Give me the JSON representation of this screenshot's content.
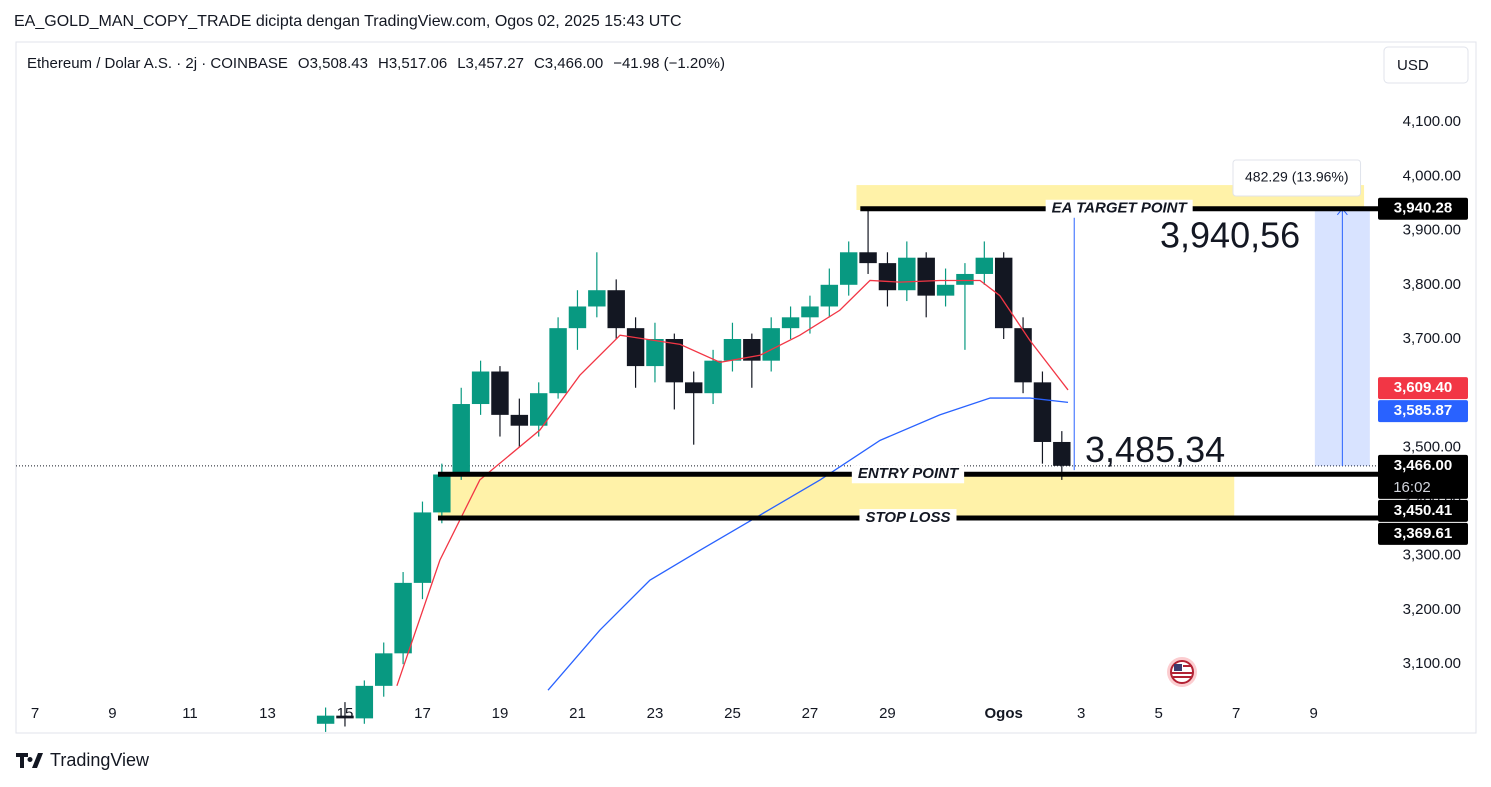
{
  "chart_data": {
    "type": "candlestick",
    "title": "EA_GOLD_MAN_COPY_TRADE dicipta dengan TradingView.com, Ogos 02, 2025 15:43 UTC",
    "symbol": "Ethereum / Dolar A.S. · 2j · COINBASE",
    "ohlc": [
      "O3,508.43",
      "H3,517.06",
      "L3,457.27",
      "C3,466.00"
    ],
    "change": "−41.98 (−1.20%)",
    "currency": "USD",
    "brand": "TradingView",
    "xlim": [
      6.51,
      41.66
    ],
    "xticks": [
      7,
      9,
      11,
      13,
      15,
      17,
      19,
      21,
      23,
      25,
      27,
      29,
      {
        "value": 32,
        "label": "Ogos"
      },
      {
        "value": 34,
        "label": "3"
      },
      {
        "value": 36,
        "label": "5"
      },
      {
        "value": 38,
        "label": "7"
      },
      {
        "value": 40,
        "label": "9"
      }
    ],
    "ylim": [
      2973,
      4248
    ],
    "yticks": [
      {
        "value": 3100,
        "label": "3,100.00"
      },
      {
        "value": 3200,
        "label": "3,200.00"
      },
      {
        "value": 3300,
        "label": "3,300.00"
      },
      {
        "value": 3400,
        "label": "3,400.00"
      },
      {
        "value": 3500,
        "label": "3,500.00"
      },
      {
        "value": 3600,
        "label": "3,600.00"
      },
      {
        "value": 3700,
        "label": "3,700.00"
      },
      {
        "value": 3800,
        "label": "3,800.00"
      },
      {
        "value": 3900,
        "label": "3,900.00"
      },
      {
        "value": 4000,
        "label": "4,000.00"
      },
      {
        "value": 4100,
        "label": "4,100.00"
      }
    ],
    "grid": false,
    "up_color": "#089981",
    "down_color": "#131722",
    "candles": {
      "x": [
        14.5,
        15,
        15.5,
        16,
        16.5,
        17,
        17.5,
        18,
        18.5,
        19,
        19.5,
        20,
        20.5,
        21,
        21.5,
        22,
        22.5,
        23,
        23.5,
        24,
        24.5,
        25,
        25.5,
        26,
        26.5,
        27,
        27.5,
        28,
        28.5,
        29,
        29.5,
        30,
        30.5,
        31,
        31.5,
        32,
        32.5,
        33,
        33.5
      ],
      "open": [
        2990,
        3005,
        3000,
        3060,
        3120,
        3250,
        3380,
        3450,
        3580,
        3640,
        3560,
        3540,
        3600,
        3720,
        3760,
        3790,
        3720,
        3650,
        3700,
        3620,
        3600,
        3660,
        3700,
        3660,
        3720,
        3740,
        3760,
        3800,
        3860,
        3840,
        3790,
        3850,
        3780,
        3800,
        3820,
        3850,
        3720,
        3620,
        3510
      ],
      "high": [
        3020,
        3030,
        3070,
        3140,
        3270,
        3400,
        3470,
        3610,
        3660,
        3650,
        3590,
        3620,
        3740,
        3790,
        3860,
        3810,
        3740,
        3730,
        3710,
        3640,
        3680,
        3730,
        3710,
        3740,
        3760,
        3780,
        3830,
        3880,
        3937,
        3860,
        3880,
        3860,
        3830,
        3840,
        3880,
        3860,
        3740,
        3640,
        3530
      ],
      "low": [
        2975,
        2985,
        2990,
        3040,
        3100,
        3220,
        3360,
        3440,
        3560,
        3520,
        3500,
        3520,
        3590,
        3680,
        3740,
        3700,
        3610,
        3620,
        3570,
        3505,
        3580,
        3640,
        3610,
        3640,
        3700,
        3710,
        3740,
        3780,
        3820,
        3760,
        3770,
        3740,
        3760,
        3680,
        3800,
        3700,
        3600,
        3470,
        3440
      ],
      "close": [
        3005,
        3000,
        3060,
        3120,
        3250,
        3380,
        3450,
        3580,
        3640,
        3560,
        3540,
        3600,
        3720,
        3760,
        3790,
        3720,
        3650,
        3700,
        3620,
        3600,
        3660,
        3700,
        3660,
        3720,
        3740,
        3760,
        3800,
        3860,
        3840,
        3790,
        3850,
        3780,
        3800,
        3820,
        3850,
        3720,
        3620,
        3510,
        3466
      ]
    },
    "series": [
      {
        "color": "#f23645",
        "x": [
          16.34,
          17.45,
          18.48,
          20.03,
          21.06,
          22.1,
          23.65,
          24.68,
          25.71,
          26.74,
          27.77,
          28.55,
          29.32,
          30.35,
          31.39,
          31.9,
          32.68,
          33.66
        ],
        "values": [
          3060,
          3292,
          3440,
          3532,
          3633,
          3707,
          3690,
          3657,
          3670,
          3707,
          3753,
          3808,
          3805,
          3808,
          3808,
          3780,
          3697,
          3606
        ]
      },
      {
        "color": "#2962ff",
        "x": [
          20.24,
          21.58,
          22.87,
          24.16,
          25.71,
          27.26,
          28.81,
          30.35,
          31.65,
          32.68,
          33.66
        ],
        "values": [
          3052,
          3163,
          3255,
          3310,
          3375,
          3440,
          3513,
          3560,
          3591,
          3591,
          3583
        ]
      }
    ],
    "current_price": 3466,
    "target_zone": {
      "xlim": [
        28.2,
        41.3
      ],
      "ylim": [
        3938,
        3984
      ]
    },
    "entry_zone": {
      "xlim": [
        17.4,
        37.95
      ],
      "ylim": [
        3369.61,
        3450.41
      ]
    },
    "levels": [
      {
        "label": "EA TARGET POINT",
        "value": 3940.28,
        "xlim": [
          28.3,
          41.66
        ]
      },
      {
        "label": "ENTRY POINT",
        "value": 3450.41,
        "xlim": [
          17.4,
          41.66
        ]
      },
      {
        "label": "STOP LOSS",
        "value": 3369.61,
        "xlim": [
          17.4,
          41.66
        ]
      }
    ],
    "annotations": [
      "3,940,56",
      "3,485,34"
    ],
    "measure": {
      "label": "482.29 (13.96%)",
      "x": 33.82,
      "from": 3457.99,
      "to": 3940.28
    },
    "range_box": {
      "xlim": [
        40.03,
        41.45
      ],
      "ylim": [
        3466,
        3940.28
      ]
    },
    "price_tags": [
      {
        "value": 3940.28,
        "label": "3,940.28",
        "color": "#000000"
      },
      {
        "value": 3609.4,
        "label": "3,609.40",
        "color": "#f23645"
      },
      {
        "value": 3585.87,
        "label": "3,585.87",
        "color": "#2962ff"
      },
      {
        "value": 3466,
        "label": "3,466.00",
        "sublabel": "16:02",
        "color": "#000000"
      },
      {
        "value": 3450.41,
        "label": "3,450.41",
        "color": "#000000"
      },
      {
        "value": 3369.61,
        "label": "3,369.61",
        "color": "#000000"
      }
    ]
  }
}
